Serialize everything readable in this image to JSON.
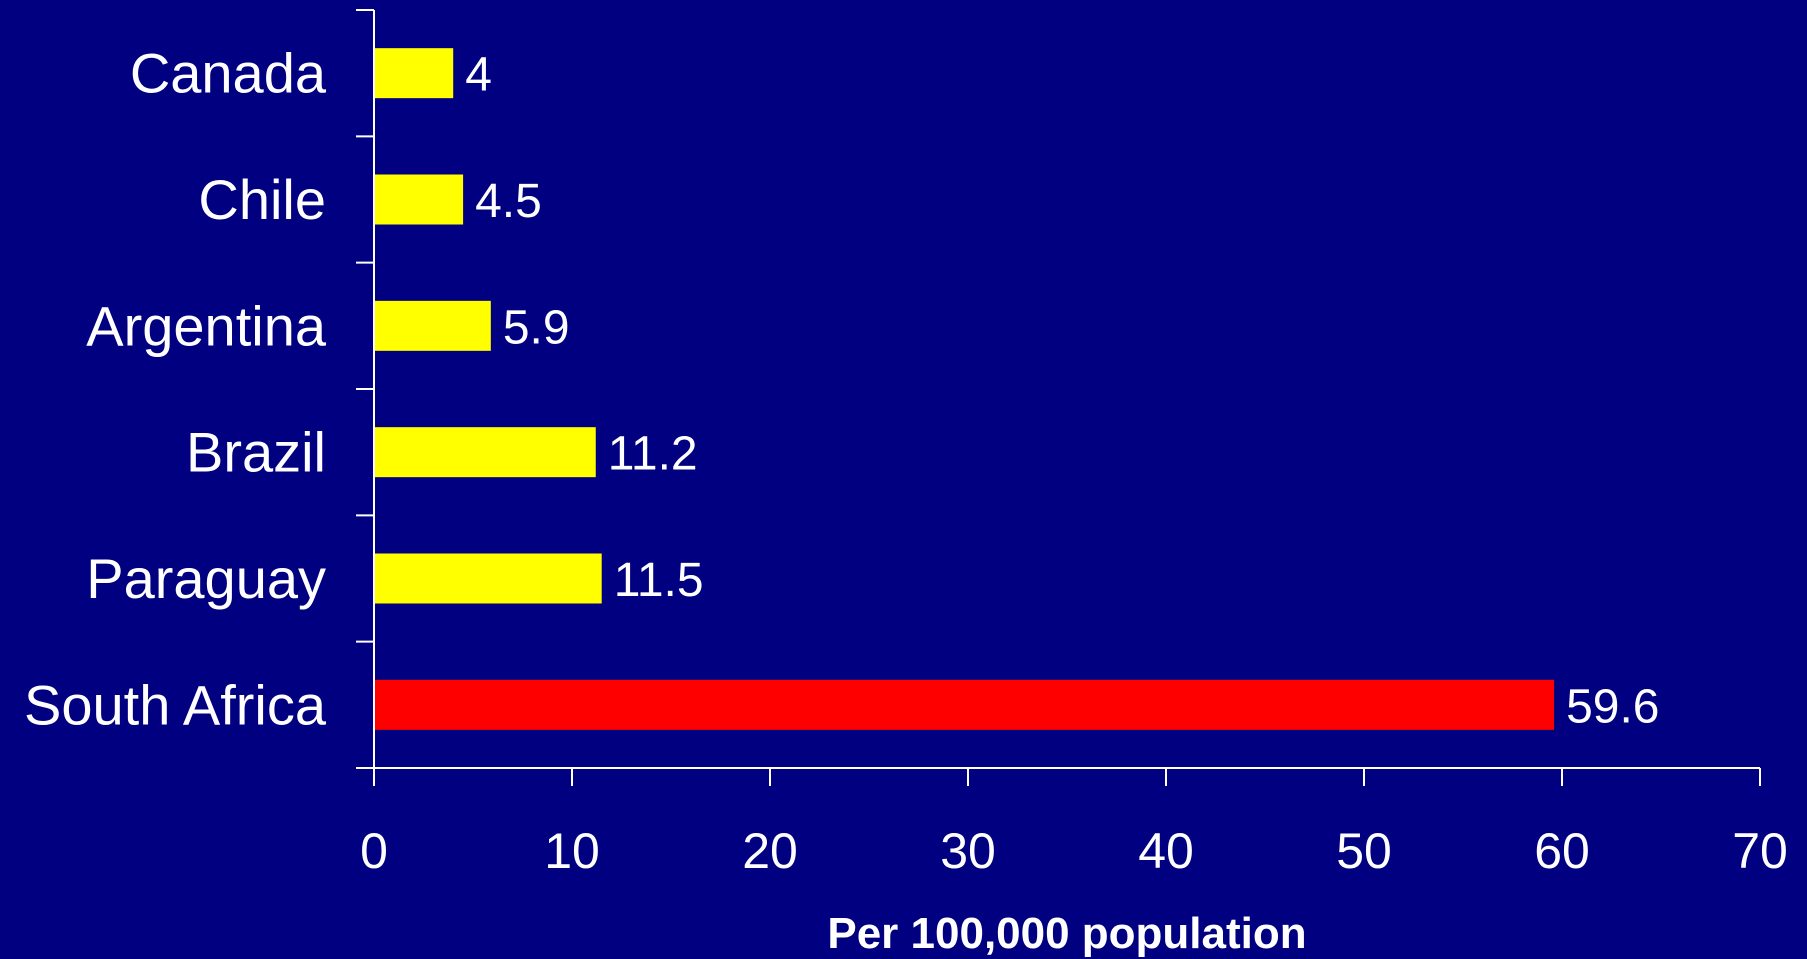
{
  "chart_data": {
    "type": "bar",
    "orientation": "horizontal",
    "categories": [
      "Canada",
      "Chile",
      "Argentina",
      "Brazil",
      "Paraguay",
      "South Africa"
    ],
    "values": [
      4,
      4.5,
      5.9,
      11.2,
      11.5,
      59.6
    ],
    "value_labels": [
      "4",
      "4.5",
      "5.9",
      "11.2",
      "11.5",
      "59.6"
    ],
    "bar_colors": [
      "#ffff00",
      "#ffff00",
      "#ffff00",
      "#ffff00",
      "#ffff00",
      "#ff0000"
    ],
    "xlabel": "Per 100,000 population",
    "ylabel": "",
    "xlim": [
      0,
      70
    ],
    "xticks": [
      0,
      10,
      20,
      30,
      40,
      50,
      60,
      70
    ],
    "grid": false,
    "legend": "none"
  },
  "colors": {
    "background": "#000080",
    "text": "#ffffff",
    "axis": "#ffffff"
  }
}
